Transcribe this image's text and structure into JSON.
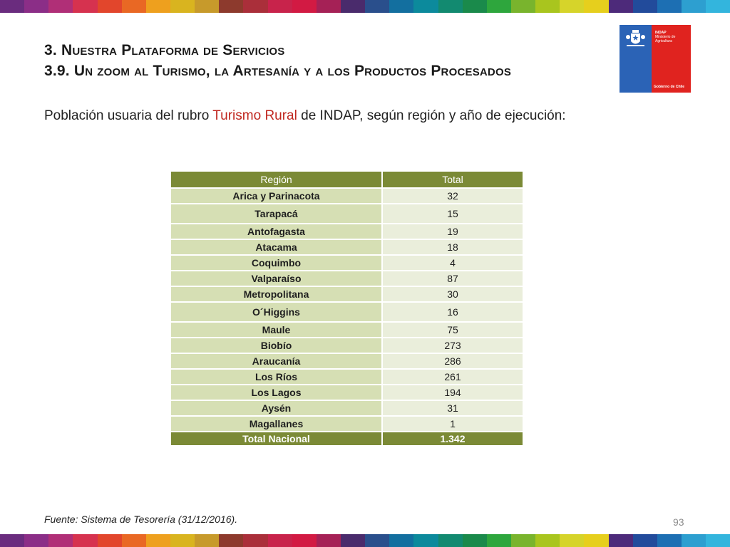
{
  "stripe_colors": [
    "#6a2c7e",
    "#8b2e87",
    "#b02f77",
    "#d6324f",
    "#e2462c",
    "#e96824",
    "#eea01e",
    "#d9b41f",
    "#c79a2b",
    "#8d3a2d",
    "#aa2f3a",
    "#c8234b",
    "#d21a43",
    "#a52156",
    "#4a2b6c",
    "#2a4f8c",
    "#136f9f",
    "#0c8a9c",
    "#128a70",
    "#1a8a4b",
    "#2ea63d",
    "#79b42d",
    "#a9c51e",
    "#d6d42a",
    "#e6cf1d",
    "#4d2a7a",
    "#224b9b",
    "#1d6fb3",
    "#2d9fd0",
    "#33b5dd"
  ],
  "heading": {
    "line1": "3. Nuestra Plataforma de Servicios",
    "line2": "3.9. Un zoom al Turismo, la Artesanía y a los Productos Procesados"
  },
  "logo": {
    "name": "INDAP",
    "ministry": "Ministerio de Agricultura",
    "government": "Gobierno de Chile",
    "seal_icon": "chile-coat-of-arms-icon"
  },
  "subtitle": {
    "before": "Población usuaria del rubro ",
    "highlight": "Turismo Rural",
    "after": " de INDAP, según región y año de ejecución:"
  },
  "table": {
    "headers": [
      "Región",
      "Total"
    ],
    "rows": [
      {
        "region": "Arica y Parinacota",
        "total": "32"
      },
      {
        "region": "Tarapacá",
        "total": "15"
      },
      {
        "region": "Antofagasta",
        "total": "19"
      },
      {
        "region": "Atacama",
        "total": "18"
      },
      {
        "region": "Coquimbo",
        "total": "4"
      },
      {
        "region": "Valparaíso",
        "total": "87"
      },
      {
        "region": "Metropolitana",
        "total": "30"
      },
      {
        "region": "O´Higgins",
        "total": "16"
      },
      {
        "region": "Maule",
        "total": "75"
      },
      {
        "region": "Biobío",
        "total": "273"
      },
      {
        "region": "Araucanía",
        "total": "286"
      },
      {
        "region": "Los Ríos",
        "total": "261"
      },
      {
        "region": "Los Lagos",
        "total": "194"
      },
      {
        "region": "Aysén",
        "total": "31"
      },
      {
        "region": "Magallanes",
        "total": "1"
      }
    ],
    "total_row": {
      "region": "Total Nacional",
      "total": "1.342"
    }
  },
  "source": "Fuente: Sistema de Tesorería (31/12/2016).",
  "page_number": "93"
}
